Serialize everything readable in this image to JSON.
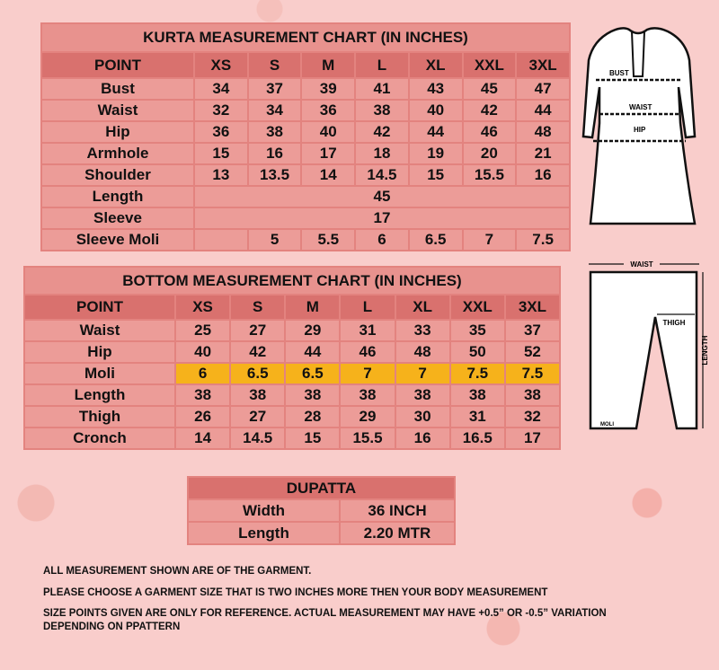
{
  "kurta": {
    "title": "KURTA MEASUREMENT CHART (IN INCHES)",
    "header": [
      "POINT",
      "XS",
      "S",
      "M",
      "L",
      "XL",
      "XXL",
      "3XL"
    ],
    "rows": [
      {
        "point": "Bust",
        "values": [
          "34",
          "37",
          "39",
          "41",
          "43",
          "45",
          "47"
        ]
      },
      {
        "point": "Waist",
        "values": [
          "32",
          "34",
          "36",
          "38",
          "40",
          "42",
          "44"
        ]
      },
      {
        "point": "Hip",
        "values": [
          "36",
          "38",
          "40",
          "42",
          "44",
          "46",
          "48"
        ]
      },
      {
        "point": "Armhole",
        "values": [
          "15",
          "16",
          "17",
          "18",
          "19",
          "20",
          "21"
        ]
      },
      {
        "point": "Shoulder",
        "values": [
          "13",
          "13.5",
          "14",
          "14.5",
          "15",
          "15.5",
          "16"
        ]
      },
      {
        "point": "Length",
        "span": "45"
      },
      {
        "point": "Sleeve",
        "span": "17"
      },
      {
        "point": "Sleeve Moli",
        "values": [
          "",
          "5",
          "5.5",
          "6",
          "6.5",
          "7",
          "7.5"
        ]
      }
    ]
  },
  "bottom": {
    "title": "BOTTOM MEASUREMENT CHART (IN INCHES)",
    "header": [
      "POINT",
      "XS",
      "S",
      "M",
      "L",
      "XL",
      "XXL",
      "3XL"
    ],
    "rows": [
      {
        "point": "Waist",
        "values": [
          "25",
          "27",
          "29",
          "31",
          "33",
          "35",
          "37"
        ]
      },
      {
        "point": "Hip",
        "values": [
          "40",
          "42",
          "44",
          "46",
          "48",
          "50",
          "52"
        ]
      },
      {
        "point": "Moli",
        "values": [
          "6",
          "6.5",
          "6.5",
          "7",
          "7",
          "7.5",
          "7.5"
        ],
        "highlight": true
      },
      {
        "point": "Length",
        "values": [
          "38",
          "38",
          "38",
          "38",
          "38",
          "38",
          "38"
        ]
      },
      {
        "point": "Thigh",
        "values": [
          "26",
          "27",
          "28",
          "29",
          "30",
          "31",
          "32"
        ]
      },
      {
        "point": "Cronch",
        "values": [
          "14",
          "14.5",
          "15",
          "15.5",
          "16",
          "16.5",
          "17"
        ]
      }
    ]
  },
  "dupatta": {
    "title": "DUPATTA",
    "rows": [
      {
        "point": "Width",
        "value": "36 INCH"
      },
      {
        "point": "Length",
        "value": "2.20 MTR"
      }
    ]
  },
  "diagram": {
    "kurta_labels": {
      "bust": "BUST",
      "waist": "WAIST",
      "hip": "HIP"
    },
    "pants_labels": {
      "waist": "WAIST",
      "thigh": "THIGH",
      "length": "LENGTH",
      "moli": "MOLI"
    }
  },
  "notes": [
    "ALL MEASUREMENT SHOWN ARE OF THE  GARMENT.",
    "PLEASE CHOOSE A GARMENT SIZE THAT IS TWO INCHES MORE THEN YOUR BODY MEASUREMENT",
    "SIZE POINTS GIVEN ARE ONLY FOR REFERENCE. ACTUAL MEASUREMENT MAY HAVE  +0.5” OR -0.5” VARIATION",
    "DEPENDING ON PPATTERN"
  ],
  "colors": {
    "background": "#f9cdcb",
    "cell": "#ec9c98",
    "header": "#d9716e",
    "highlight": "#f6b21b"
  }
}
